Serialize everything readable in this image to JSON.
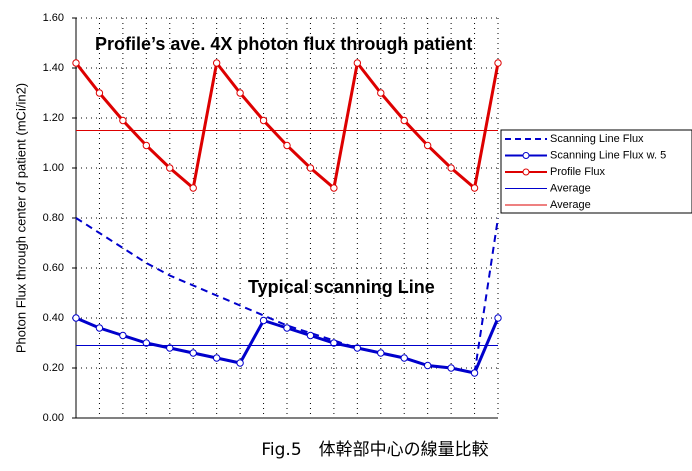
{
  "chart_data": {
    "type": "line",
    "ylabel": "Photon Flux through center of patient (mCi/in2)",
    "annotations": [
      "Profile’s ave. 4X photon flux through patient",
      "Typical scanning Line"
    ],
    "caption": "Fig.5　体幹部中心の線量比較",
    "x": [
      0,
      1,
      2,
      3,
      4,
      5,
      6,
      7,
      8,
      9,
      10,
      11,
      12,
      13,
      14,
      15,
      16,
      17,
      18
    ],
    "xlim": [
      0,
      18
    ],
    "ylim": [
      0,
      1.6
    ],
    "yticks": [
      {
        "value": 0,
        "label": "0.00"
      },
      {
        "value": 0.2,
        "label": "0.20"
      },
      {
        "value": 0.4,
        "label": "0.40"
      },
      {
        "value": 0.6,
        "label": "0.60"
      },
      {
        "value": 0.8,
        "label": "0.80"
      },
      {
        "value": 1.0,
        "label": "1.00"
      },
      {
        "value": 1.2,
        "label": "1.20"
      },
      {
        "value": 1.4,
        "label": "1.40"
      },
      {
        "value": 1.6,
        "label": "1.60"
      }
    ],
    "grid": true,
    "series": [
      {
        "name": "Scanning Line Flux",
        "color": "#0000cc",
        "style": "dashed",
        "markers": false,
        "width": 2,
        "values": [
          0.8,
          0.74,
          0.68,
          0.62,
          0.57,
          0.53,
          0.49,
          0.45,
          0.41,
          0.37,
          0.34,
          0.31,
          0.28,
          0.26,
          0.24,
          0.21,
          0.2,
          0.18,
          0.8
        ]
      },
      {
        "name": "Scanning Line Flux w. 5",
        "color": "#0000cc",
        "style": "solid",
        "markers": true,
        "width": 3,
        "values": [
          0.4,
          0.36,
          0.33,
          0.3,
          0.28,
          0.26,
          0.24,
          0.22,
          0.39,
          0.36,
          0.33,
          0.3,
          0.28,
          0.26,
          0.24,
          0.21,
          0.2,
          0.18,
          0.4
        ]
      },
      {
        "name": "Profile Flux",
        "color": "#dd0000",
        "style": "solid",
        "markers": true,
        "width": 3,
        "values": [
          1.42,
          1.3,
          1.19,
          1.09,
          1.0,
          0.92,
          1.42,
          1.3,
          1.19,
          1.09,
          1.0,
          0.92,
          1.42,
          1.3,
          1.19,
          1.09,
          1.0,
          0.92,
          1.42
        ]
      },
      {
        "name": "Average",
        "color": "#0000cc",
        "style": "solid",
        "markers": false,
        "width": 1,
        "values": [
          0.29,
          0.29,
          0.29,
          0.29,
          0.29,
          0.29,
          0.29,
          0.29,
          0.29,
          0.29,
          0.29,
          0.29,
          0.29,
          0.29,
          0.29,
          0.29,
          0.29,
          0.29,
          0.29
        ]
      },
      {
        "name": "Average",
        "color": "#dd0000",
        "style": "solid",
        "markers": false,
        "width": 1,
        "values": [
          1.15,
          1.15,
          1.15,
          1.15,
          1.15,
          1.15,
          1.15,
          1.15,
          1.15,
          1.15,
          1.15,
          1.15,
          1.15,
          1.15,
          1.15,
          1.15,
          1.15,
          1.15,
          1.15
        ]
      }
    ]
  }
}
